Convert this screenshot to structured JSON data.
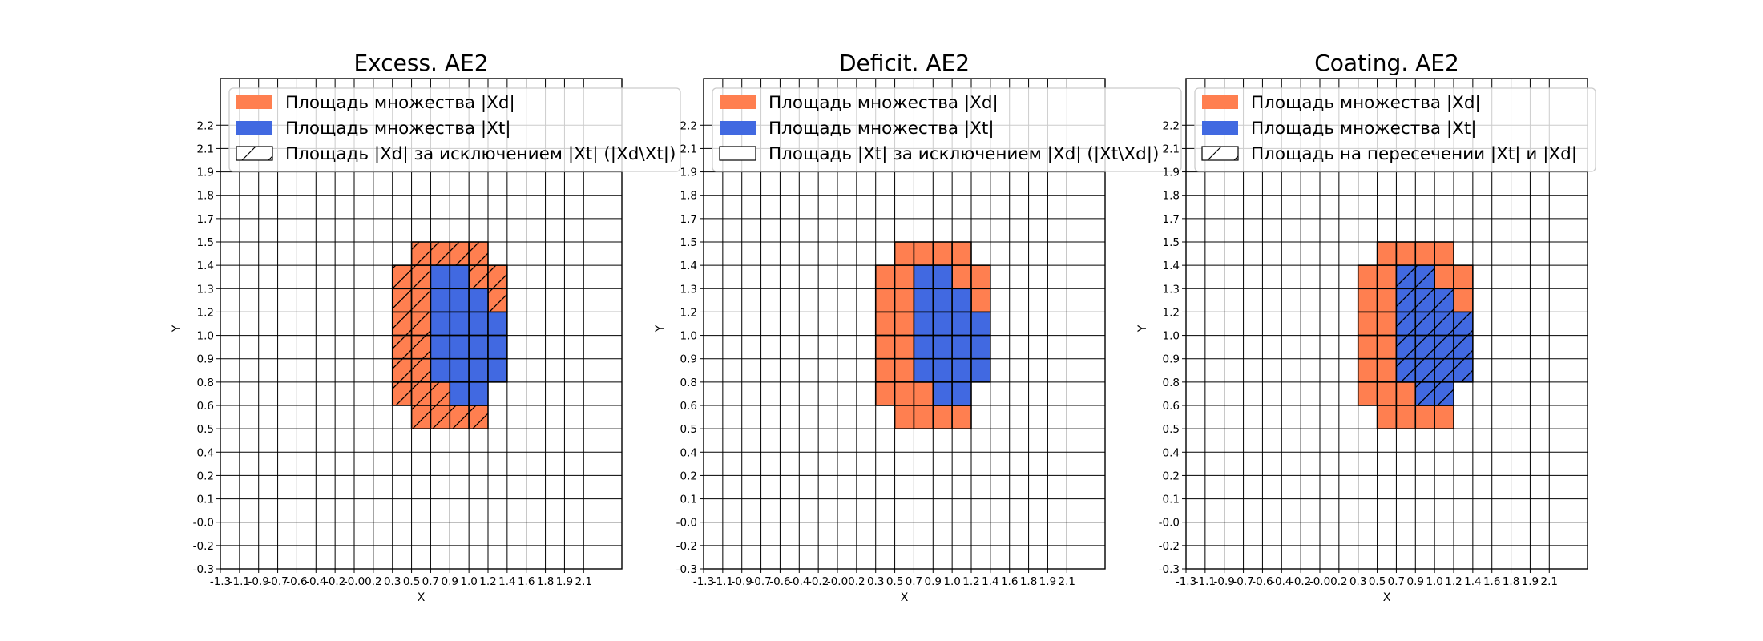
{
  "colors": {
    "xd": "#FF7F50",
    "xt": "#4169E1",
    "edge": "#000000",
    "grid": "#000000"
  },
  "chart_data": [
    {
      "type": "heatmap",
      "title": "Excess. AE2",
      "xlabel": "X",
      "ylabel": "Y",
      "grid": true,
      "legend_placement": "upper-left",
      "hatched_set": "xd_only",
      "legend": [
        {
          "label": "Площадь множества |Xd|",
          "swatch": "xd"
        },
        {
          "label": "Площадь множества  |Xt|",
          "swatch": "xt"
        },
        {
          "label": "Площадь |Xd| за исключением |Xt| (|Xd\\Xt|)",
          "swatch": "hatch"
        }
      ]
    },
    {
      "type": "heatmap",
      "title": "Deficit. AE2",
      "xlabel": "X",
      "ylabel": "Y",
      "grid": true,
      "legend_placement": "upper-left",
      "hatched_set": "none",
      "legend": [
        {
          "label": "Площадь множества |Xd|",
          "swatch": "xd"
        },
        {
          "label": "Площадь множества  |Xt|",
          "swatch": "xt"
        },
        {
          "label": "Площадь |Xt| за исключением |Xd| (|Xt\\Xd|)",
          "swatch": "empty"
        }
      ]
    },
    {
      "type": "heatmap",
      "title": "Coating. AE2",
      "xlabel": "X",
      "ylabel": "Y",
      "grid": true,
      "legend_placement": "upper-left",
      "hatched_set": "xt",
      "legend": [
        {
          "label": "Площадь множества |Xd|",
          "swatch": "xd"
        },
        {
          "label": "Площадь множества  |Xt|",
          "swatch": "xt"
        },
        {
          "label": "Площадь на пересечении |Xt| и |Xd|",
          "swatch": "hatch"
        }
      ]
    }
  ],
  "axes": {
    "xticks": [
      "-1.3",
      "-1.1",
      "-0.9",
      "-0.7",
      "-0.6",
      "-0.4",
      "-0.2",
      "-0.0",
      "0.2",
      "0.3",
      "0.5",
      "0.7",
      "0.9",
      "1.0",
      "1.2",
      "1.4",
      "1.6",
      "1.8",
      "1.9",
      "2.1"
    ],
    "yticks": [
      "-0.3",
      "-0.2",
      "-0.0",
      "0.1",
      "0.2",
      "0.4",
      "0.5",
      "0.6",
      "0.8",
      "0.9",
      "1.0",
      "1.2",
      "1.3",
      "1.4",
      "1.5",
      "1.7",
      "1.8",
      "1.9",
      "2.1",
      "2.2"
    ]
  },
  "cells": {
    "xd_only": [
      [
        "0.5",
        "1.4"
      ],
      [
        "0.7",
        "1.4"
      ],
      [
        "0.9",
        "1.4"
      ],
      [
        "1.0",
        "1.4"
      ],
      [
        "0.3",
        "1.3"
      ],
      [
        "0.5",
        "1.3"
      ],
      [
        "1.0",
        "1.3"
      ],
      [
        "1.2",
        "1.3"
      ],
      [
        "0.3",
        "1.2"
      ],
      [
        "0.5",
        "1.2"
      ],
      [
        "1.2",
        "1.2"
      ],
      [
        "0.3",
        "1.0"
      ],
      [
        "0.5",
        "1.0"
      ],
      [
        "0.3",
        "0.9"
      ],
      [
        "0.5",
        "0.9"
      ],
      [
        "0.3",
        "0.8"
      ],
      [
        "0.5",
        "0.8"
      ],
      [
        "0.3",
        "0.6"
      ],
      [
        "0.5",
        "0.6"
      ],
      [
        "0.7",
        "0.6"
      ],
      [
        "0.5",
        "0.5"
      ],
      [
        "0.7",
        "0.5"
      ],
      [
        "0.9",
        "0.5"
      ],
      [
        "1.0",
        "0.5"
      ]
    ],
    "xt": [
      [
        "0.7",
        "1.3"
      ],
      [
        "0.9",
        "1.3"
      ],
      [
        "0.7",
        "1.2"
      ],
      [
        "0.9",
        "1.2"
      ],
      [
        "1.0",
        "1.2"
      ],
      [
        "0.7",
        "1.0"
      ],
      [
        "0.9",
        "1.0"
      ],
      [
        "1.0",
        "1.0"
      ],
      [
        "1.2",
        "1.0"
      ],
      [
        "0.7",
        "0.9"
      ],
      [
        "0.9",
        "0.9"
      ],
      [
        "1.0",
        "0.9"
      ],
      [
        "1.2",
        "0.9"
      ],
      [
        "0.7",
        "0.8"
      ],
      [
        "0.9",
        "0.8"
      ],
      [
        "1.0",
        "0.8"
      ],
      [
        "1.2",
        "0.8"
      ],
      [
        "0.9",
        "0.6"
      ],
      [
        "1.0",
        "0.6"
      ]
    ]
  }
}
